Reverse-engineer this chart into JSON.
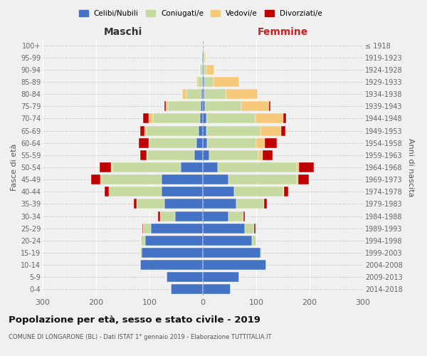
{
  "age_groups": [
    "0-4",
    "5-9",
    "10-14",
    "15-19",
    "20-24",
    "25-29",
    "30-34",
    "35-39",
    "40-44",
    "45-49",
    "50-54",
    "55-59",
    "60-64",
    "65-69",
    "70-74",
    "75-79",
    "80-84",
    "85-89",
    "90-94",
    "95-99",
    "100+"
  ],
  "birth_years": [
    "2014-2018",
    "2009-2013",
    "2004-2008",
    "1999-2003",
    "1994-1998",
    "1989-1993",
    "1984-1988",
    "1979-1983",
    "1974-1978",
    "1969-1973",
    "1964-1968",
    "1959-1963",
    "1954-1958",
    "1949-1953",
    "1944-1948",
    "1939-1943",
    "1934-1938",
    "1929-1933",
    "1924-1928",
    "1919-1923",
    "≤ 1918"
  ],
  "male": {
    "celibe": [
      60,
      68,
      118,
      115,
      108,
      98,
      52,
      72,
      78,
      78,
      42,
      16,
      12,
      8,
      6,
      4,
      3,
      2,
      1,
      1,
      0
    ],
    "coniugato": [
      0,
      0,
      0,
      2,
      8,
      14,
      28,
      52,
      98,
      112,
      128,
      88,
      88,
      98,
      88,
      62,
      28,
      8,
      4,
      2,
      0
    ],
    "vedovo": [
      0,
      0,
      0,
      0,
      0,
      0,
      0,
      0,
      0,
      2,
      2,
      2,
      2,
      4,
      8,
      4,
      8,
      2,
      1,
      0,
      0
    ],
    "divorziato": [
      0,
      0,
      0,
      0,
      0,
      2,
      4,
      5,
      8,
      18,
      22,
      12,
      18,
      8,
      10,
      2,
      0,
      0,
      0,
      0,
      0
    ]
  },
  "female": {
    "celibe": [
      52,
      68,
      118,
      108,
      92,
      78,
      48,
      62,
      58,
      48,
      28,
      12,
      8,
      6,
      6,
      4,
      2,
      2,
      1,
      1,
      0
    ],
    "coniugato": [
      0,
      0,
      0,
      2,
      8,
      18,
      28,
      52,
      92,
      128,
      148,
      92,
      92,
      102,
      92,
      68,
      42,
      18,
      6,
      2,
      0
    ],
    "vedovo": [
      0,
      0,
      0,
      0,
      0,
      0,
      0,
      0,
      2,
      2,
      4,
      8,
      16,
      38,
      52,
      52,
      58,
      48,
      14,
      2,
      1
    ],
    "divorziato": [
      0,
      0,
      0,
      0,
      0,
      2,
      2,
      6,
      8,
      20,
      28,
      18,
      22,
      8,
      6,
      2,
      1,
      0,
      0,
      0,
      0
    ]
  },
  "colors": {
    "celibe": "#4472C4",
    "coniugato": "#c5d9a0",
    "vedovo": "#f5c87a",
    "divorziato": "#c00000"
  },
  "legend_labels": [
    "Celibi/Nubili",
    "Coniugati/e",
    "Vedovi/e",
    "Divorziati/e"
  ],
  "title": "Popolazione per età, sesso e stato civile - 2019",
  "subtitle": "COMUNE DI LONGARONE (BL) - Dati ISTAT 1° gennaio 2019 - Elaborazione TUTTITALIA.IT",
  "xlabel_left": "Maschi",
  "xlabel_right": "Femmine",
  "ylabel_left": "Fasce di età",
  "ylabel_right": "Anni di nascita",
  "xlim": 300,
  "bg_color": "#f0f0f0"
}
